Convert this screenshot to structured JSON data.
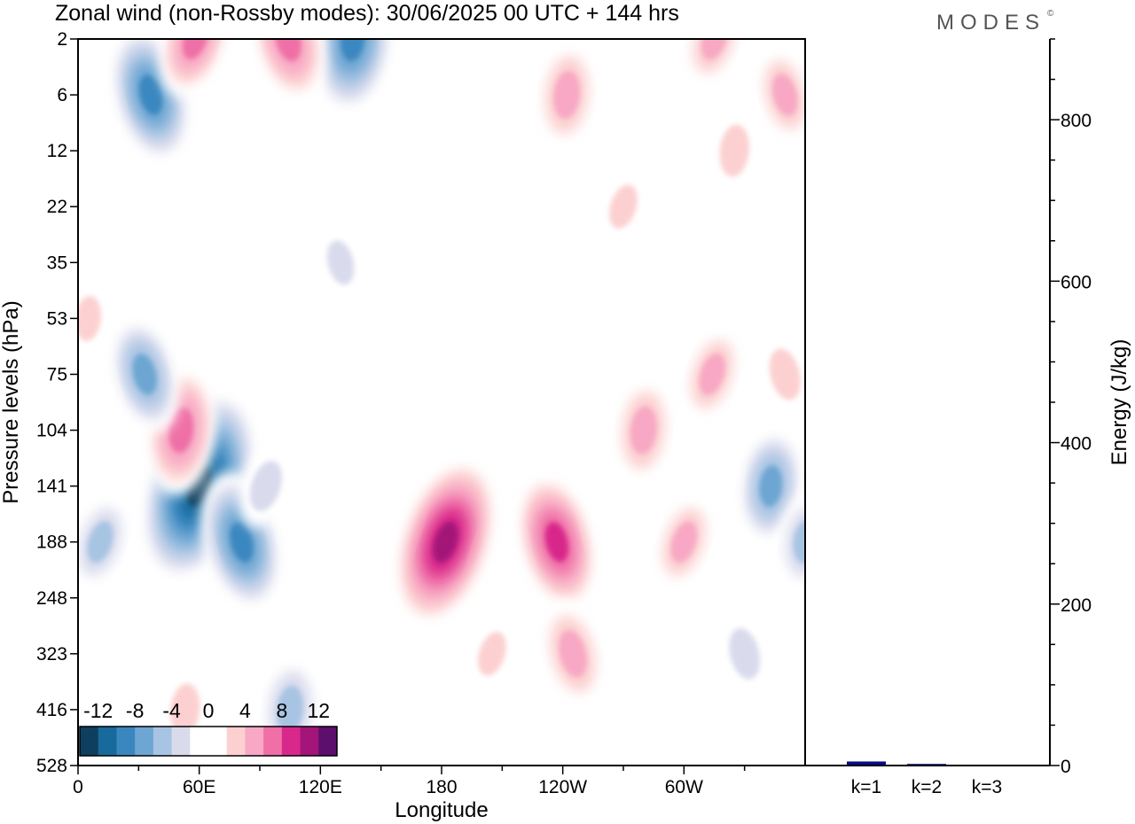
{
  "chart_data": {
    "type": "heatmap",
    "title": "Zonal wind (non-Rossby modes):  30/06/2025  00 UTC  + 144 hrs",
    "brand": "MODES",
    "brand_mark": "©",
    "xlabel": "Longitude",
    "ylabel": "Pressure levels (hPa)",
    "x_ticks": [
      {
        "lon": 0,
        "label": "0"
      },
      {
        "lon": 60,
        "label": "60E"
      },
      {
        "lon": 120,
        "label": "120E"
      },
      {
        "lon": 180,
        "label": "180"
      },
      {
        "lon": 240,
        "label": "120W"
      },
      {
        "lon": 300,
        "label": "60W"
      }
    ],
    "xlim": [
      0,
      360
    ],
    "y_levels": [
      "2",
      "6",
      "12",
      "22",
      "35",
      "53",
      "75",
      "104",
      "141",
      "188",
      "248",
      "323",
      "416",
      "528"
    ],
    "colorbar": {
      "labels": [
        "-12",
        "-8",
        "-4",
        "0",
        "4",
        "8",
        "12"
      ],
      "bounds": [
        -14,
        -12,
        -10,
        -8,
        -6,
        -4,
        -2,
        0,
        2,
        4,
        6,
        8,
        10,
        12,
        14
      ],
      "colors": [
        "#0f3f5f",
        "#176a9c",
        "#3a87c0",
        "#6da6d2",
        "#a7c4e3",
        "#d9dbed",
        "#ffffff",
        "#ffffff",
        "#fcd0d0",
        "#f8a8c4",
        "#ef6fa6",
        "#d8288b",
        "#a31578",
        "#5d0f6e"
      ]
    },
    "features": [
      {
        "lon": 60,
        "level": "141",
        "value": -14
      },
      {
        "lon": 81,
        "level": "188",
        "value": -9
      },
      {
        "lon": 51,
        "level": "104",
        "value": 8
      },
      {
        "lon": 11,
        "level": "188",
        "value": -5
      },
      {
        "lon": 33,
        "level": "75",
        "value": -7
      },
      {
        "lon": 5,
        "level": "53",
        "value": 3
      },
      {
        "lon": 93,
        "level": "141",
        "value": -4
      },
      {
        "lon": 36,
        "level": "6",
        "value": -9
      },
      {
        "lon": 136,
        "level": "2",
        "value": -10
      },
      {
        "lon": 58,
        "level": "2",
        "value": 7
      },
      {
        "lon": 104,
        "level": "2",
        "value": 8
      },
      {
        "lon": 105,
        "level": "416",
        "value": -6
      },
      {
        "lon": 182,
        "level": "188",
        "value": 12
      },
      {
        "lon": 237,
        "level": "188",
        "value": 9
      },
      {
        "lon": 280,
        "level": "104",
        "value": 6
      },
      {
        "lon": 314,
        "level": "75",
        "value": 5
      },
      {
        "lon": 350,
        "level": "75",
        "value": 4
      },
      {
        "lon": 343,
        "level": "141",
        "value": -7
      },
      {
        "lon": 300,
        "level": "188",
        "value": 5
      },
      {
        "lon": 245,
        "level": "323",
        "value": 6
      },
      {
        "lon": 242,
        "level": "6",
        "value": 6
      },
      {
        "lon": 315,
        "level": "2",
        "value": 5
      },
      {
        "lon": 350,
        "level": "6",
        "value": 5
      },
      {
        "lon": 325,
        "level": "12",
        "value": 4
      },
      {
        "lon": 270,
        "level": "22",
        "value": 3
      },
      {
        "lon": 130,
        "level": "35",
        "value": -3
      },
      {
        "lon": 53,
        "level": "416",
        "value": 4
      },
      {
        "lon": 205,
        "level": "323",
        "value": 3
      },
      {
        "lon": 330,
        "level": "323",
        "value": -4
      },
      {
        "lon": 360,
        "level": "188",
        "value": -5
      }
    ],
    "energy": {
      "ylabel": "Energy (J/kg)",
      "ylim": [
        0,
        900
      ],
      "ticks": [
        0,
        200,
        400,
        600,
        800
      ],
      "categories": [
        "k=1",
        "k=2",
        "k=3"
      ],
      "values": [
        5,
        2,
        1
      ],
      "bar_color": "#0a0a8c"
    }
  }
}
